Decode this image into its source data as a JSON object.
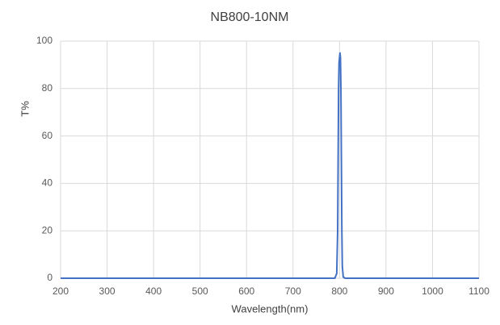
{
  "chart_data": {
    "type": "line",
    "title": "NB800-10NM",
    "x_label": "Wavelength(nm)",
    "y_label": "T%",
    "x": [
      200,
      790,
      794,
      796,
      797,
      798,
      799,
      800,
      801,
      802,
      803,
      804,
      805,
      806,
      808,
      812,
      1100
    ],
    "series": [
      {
        "name": "T%",
        "color": "#4472c4",
        "values": [
          0,
          0,
          2,
          20,
          50,
          80,
          91,
          93,
          95,
          93,
          80,
          50,
          20,
          5,
          0.5,
          0,
          0
        ]
      }
    ],
    "xlim": [
      200,
      1100
    ],
    "xticks": [
      200,
      300,
      400,
      500,
      600,
      700,
      800,
      900,
      1000,
      1100
    ],
    "ylim": [
      0,
      100
    ],
    "yticks": [
      0,
      20,
      40,
      60,
      80,
      100
    ],
    "grid": true
  }
}
